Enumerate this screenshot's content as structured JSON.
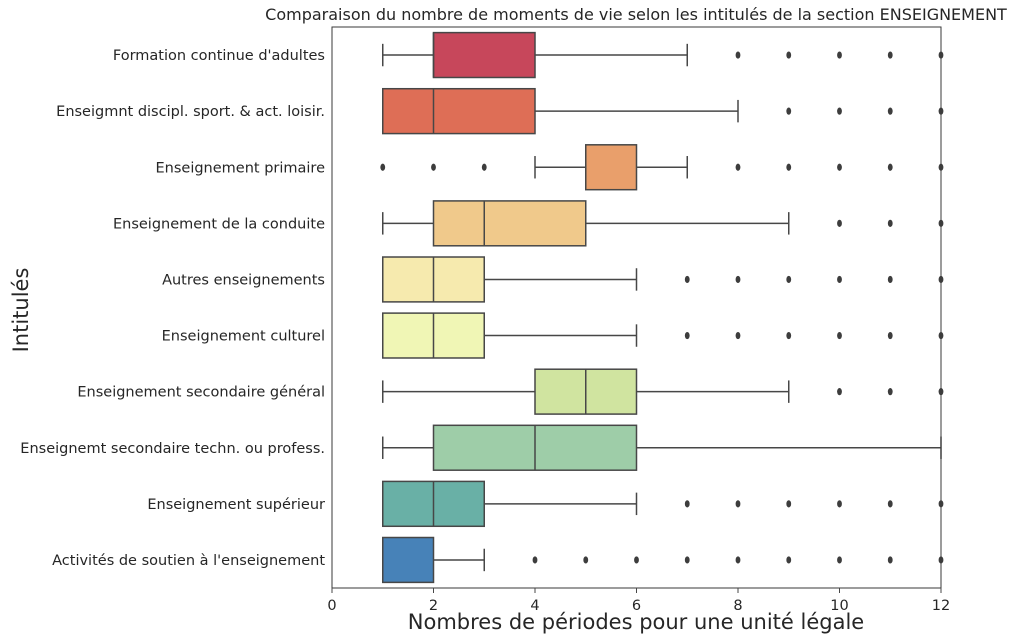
{
  "chart_data": {
    "type": "boxplot",
    "orientation": "horizontal",
    "title": "Comparaison du nombre de moments de vie selon les intitulés de la section ENSEIGNEMENT",
    "xlabel": "Nombres de périodes pour une unité légale",
    "ylabel": "Intitulés",
    "xlim": [
      0,
      12
    ],
    "xticks": [
      "0",
      "2",
      "4",
      "6",
      "8",
      "10",
      "12"
    ],
    "grid": false,
    "categories": [
      "Formation continue d'adultes",
      "Enseigmnt discipl. sport. & act. loisir.",
      "Enseignement primaire",
      "Enseignement de la conduite",
      "Autres enseignements",
      "Enseignement culturel",
      "Enseignement secondaire général",
      "Enseignemt secondaire techn. ou profess.",
      "Enseignement supérieur",
      "Activités de soutien à l'enseignement"
    ],
    "boxes": [
      {
        "whislo": 1,
        "q1": 2,
        "med": 2,
        "q3": 4,
        "whishi": 7,
        "fliers": [
          8,
          9,
          10,
          11,
          12
        ],
        "color": "#c7475b"
      },
      {
        "whislo": 1,
        "q1": 1,
        "med": 2,
        "q3": 4,
        "whishi": 8,
        "fliers": [
          9,
          10,
          11,
          12
        ],
        "color": "#de6e56"
      },
      {
        "whislo": 4,
        "q1": 5,
        "med": 5,
        "q3": 6,
        "whishi": 7,
        "fliers": [
          1,
          2,
          3,
          8,
          9,
          10,
          11,
          12
        ],
        "color": "#e99f6b"
      },
      {
        "whislo": 1,
        "q1": 2,
        "med": 3,
        "q3": 5,
        "whishi": 9,
        "fliers": [
          10,
          11,
          12
        ],
        "color": "#f0c98b"
      },
      {
        "whislo": 1,
        "q1": 1,
        "med": 2,
        "q3": 3,
        "whishi": 6,
        "fliers": [
          7,
          8,
          9,
          10,
          11,
          12
        ],
        "color": "#f6eaae"
      },
      {
        "whislo": 1,
        "q1": 1,
        "med": 2,
        "q3": 3,
        "whishi": 6,
        "fliers": [
          7,
          8,
          9,
          10,
          11,
          12
        ],
        "color": "#f0f6b5"
      },
      {
        "whislo": 1,
        "q1": 4,
        "med": 5,
        "q3": 6,
        "whishi": 9,
        "fliers": [
          10,
          11,
          12
        ],
        "color": "#d0e4a0"
      },
      {
        "whislo": 1,
        "q1": 2,
        "med": 4,
        "q3": 6,
        "whishi": 12,
        "fliers": [],
        "color": "#9ecda8"
      },
      {
        "whislo": 1,
        "q1": 1,
        "med": 2,
        "q3": 3,
        "whishi": 6,
        "fliers": [
          7,
          8,
          9,
          10,
          11,
          12
        ],
        "color": "#69b0a6"
      },
      {
        "whislo": 1,
        "q1": 1,
        "med": 1,
        "q3": 2,
        "whishi": 3,
        "fliers": [
          4,
          5,
          6,
          7,
          8,
          9,
          10,
          11,
          12
        ],
        "color": "#4782b8"
      }
    ]
  }
}
